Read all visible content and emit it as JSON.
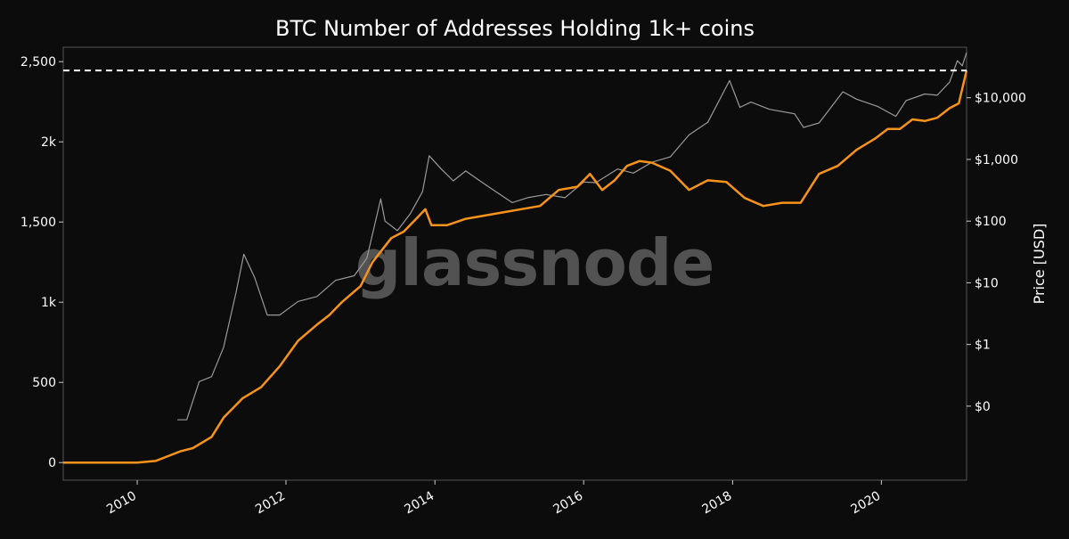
{
  "watermark": "glassnode",
  "chart_data": {
    "type": "line",
    "title": "BTC Number of Addresses Holding 1k+ coins",
    "xlabel": "",
    "ylabel_left": "",
    "ylabel_right": "Price [USD]",
    "x_range": [
      "2009-01-03",
      "2021-02-22"
    ],
    "y_left_range": [
      -110,
      2590
    ],
    "y_left_ticks": [
      {
        "value": 0,
        "label": "0"
      },
      {
        "value": 500,
        "label": "500"
      },
      {
        "value": 1000,
        "label": "1k"
      },
      {
        "value": 1500,
        "label": "1,500"
      },
      {
        "value": 2000,
        "label": "2k"
      },
      {
        "value": 2500,
        "label": "2,500"
      }
    ],
    "y_right_scale": "log",
    "y_right_range": [
      0.0063,
      66000
    ],
    "y_right_ticks": [
      {
        "value": 0.1,
        "label": "$0"
      },
      {
        "value": 1,
        "label": "$1"
      },
      {
        "value": 10,
        "label": "$10"
      },
      {
        "value": 100,
        "label": "$100"
      },
      {
        "value": 1000,
        "label": "$1,000"
      },
      {
        "value": 10000,
        "label": "$10,000"
      }
    ],
    "x_ticks": [
      {
        "value": "2010-01-01",
        "label": "2010"
      },
      {
        "value": "2012-01-01",
        "label": "2012"
      },
      {
        "value": "2014-01-01",
        "label": "2014"
      },
      {
        "value": "2016-01-01",
        "label": "2016"
      },
      {
        "value": "2018-01-01",
        "label": "2018"
      },
      {
        "value": "2020-01-01",
        "label": "2020"
      }
    ],
    "grid": false,
    "reference_line": {
      "value": 2445,
      "axis": "left",
      "style": "dashed",
      "color": "#ffffff"
    },
    "colors": {
      "addresses": "#f7931a",
      "price": "#9a9a9a",
      "background": "#0c0c0c",
      "frame": "#555555"
    },
    "series": [
      {
        "axis": "left",
        "color": "#f7931a",
        "x": [
          "2009-01-03",
          "2010-01-01",
          "2010-04-01",
          "2010-06-01",
          "2010-08-01",
          "2010-10-01",
          "2011-01-01",
          "2011-03-01",
          "2011-06-01",
          "2011-09-01",
          "2011-12-01",
          "2012-03-01",
          "2012-06-01",
          "2012-08-01",
          "2012-10-01",
          "2013-01-01",
          "2013-03-01",
          "2013-06-01",
          "2013-08-01",
          "2013-10-01",
          "2013-11-15",
          "2013-12-15",
          "2014-03-01",
          "2014-06-01",
          "2014-09-01",
          "2014-12-01",
          "2015-03-01",
          "2015-06-01",
          "2015-09-01",
          "2015-12-01",
          "2016-02-01",
          "2016-04-01",
          "2016-06-01",
          "2016-08-01",
          "2016-10-01",
          "2016-12-01",
          "2017-03-01",
          "2017-06-01",
          "2017-09-01",
          "2017-12-01",
          "2018-03-01",
          "2018-06-01",
          "2018-09-01",
          "2018-12-01",
          "2019-03-01",
          "2019-06-01",
          "2019-09-01",
          "2019-12-01",
          "2020-02-01",
          "2020-04-01",
          "2020-06-01",
          "2020-08-01",
          "2020-10-01",
          "2020-12-01",
          "2021-01-15",
          "2021-02-22"
        ],
        "values": [
          0,
          0,
          10,
          40,
          70,
          90,
          160,
          280,
          400,
          470,
          600,
          760,
          860,
          920,
          1000,
          1100,
          1250,
          1400,
          1440,
          1520,
          1580,
          1480,
          1480,
          1520,
          1540,
          1560,
          1580,
          1600,
          1700,
          1720,
          1800,
          1700,
          1760,
          1850,
          1880,
          1870,
          1820,
          1700,
          1760,
          1750,
          1650,
          1600,
          1620,
          1620,
          1800,
          1850,
          1950,
          2020,
          2080,
          2080,
          2140,
          2130,
          2150,
          2210,
          2240,
          2445
        ]
      },
      {
        "axis": "right",
        "color": "#9a9a9a",
        "x": [
          "2010-07-17",
          "2010-09-01",
          "2010-11-01",
          "2011-01-01",
          "2011-03-01",
          "2011-05-01",
          "2011-06-08",
          "2011-08-01",
          "2011-10-01",
          "2011-12-01",
          "2012-03-01",
          "2012-06-01",
          "2012-09-01",
          "2012-12-01",
          "2013-02-01",
          "2013-04-10",
          "2013-05-01",
          "2013-07-01",
          "2013-09-01",
          "2013-11-01",
          "2013-12-04",
          "2014-02-01",
          "2014-04-01",
          "2014-06-01",
          "2014-09-01",
          "2015-01-15",
          "2015-04-01",
          "2015-07-01",
          "2015-10-01",
          "2016-01-01",
          "2016-03-01",
          "2016-06-15",
          "2016-09-01",
          "2016-12-01",
          "2017-03-01",
          "2017-06-01",
          "2017-09-01",
          "2017-12-17",
          "2018-02-06",
          "2018-04-01",
          "2018-07-01",
          "2018-11-01",
          "2018-12-15",
          "2019-03-01",
          "2019-06-26",
          "2019-09-01",
          "2019-12-15",
          "2020-03-12",
          "2020-05-01",
          "2020-08-01",
          "2020-10-01",
          "2020-12-01",
          "2021-01-08",
          "2021-02-01",
          "2021-02-22"
        ],
        "values": [
          0.06,
          0.06,
          0.25,
          0.3,
          0.9,
          7,
          29,
          12,
          3,
          3,
          5,
          6,
          11,
          13,
          25,
          230,
          100,
          70,
          130,
          300,
          1150,
          700,
          450,
          650,
          400,
          200,
          240,
          270,
          240,
          430,
          420,
          700,
          600,
          900,
          1100,
          2500,
          4000,
          19000,
          7000,
          8500,
          6500,
          5500,
          3300,
          3900,
          12500,
          9500,
          7200,
          5000,
          9000,
          11500,
          11000,
          18000,
          40000,
          33000,
          54000
        ]
      }
    ]
  }
}
